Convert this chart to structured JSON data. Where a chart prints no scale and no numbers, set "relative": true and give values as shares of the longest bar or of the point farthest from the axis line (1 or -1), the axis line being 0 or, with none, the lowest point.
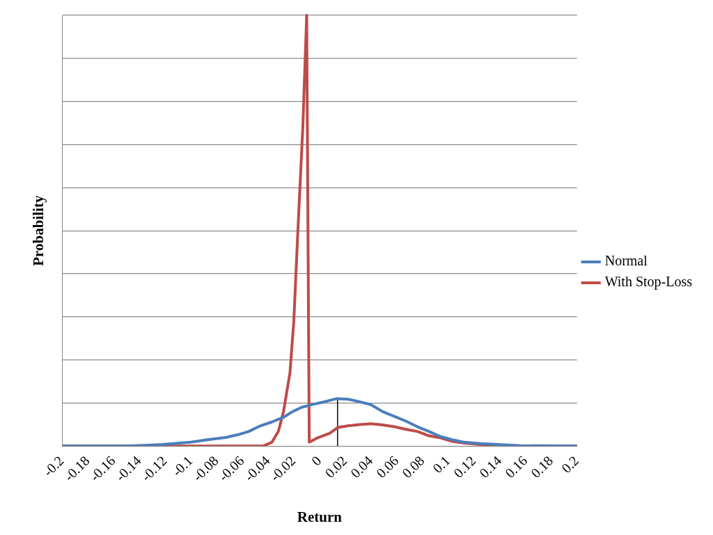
{
  "chart_data": {
    "type": "line",
    "xlabel": "Return",
    "ylabel": "Probability",
    "relative": true,
    "grid": "y",
    "legend": "right",
    "marker": "none",
    "line_style": "solid",
    "xlim": [
      -0.2,
      0.2
    ],
    "xticks": [
      -0.2,
      -0.18,
      -0.16,
      -0.14,
      -0.12,
      -0.1,
      -0.08,
      -0.06,
      -0.04,
      -0.02,
      0,
      0.02,
      0.04,
      0.06,
      0.08,
      0.1,
      0.12,
      0.14,
      0.16,
      0.18,
      0.2
    ],
    "series": [
      {
        "name": "Normal",
        "color": "#4a7ebb",
        "x": [
          -0.2,
          -0.15,
          -0.136,
          -0.122,
          -0.113,
          -0.1,
          -0.086,
          -0.073,
          -0.064,
          -0.055,
          -0.046,
          -0.037,
          -0.028,
          -0.021,
          -0.014,
          -0.005,
          0.004,
          0.013,
          0.022,
          0.031,
          0.04,
          0.049,
          0.058,
          0.067,
          0.076,
          0.085,
          0.094,
          0.103,
          0.112,
          0.125,
          0.138,
          0.156,
          0.2
        ],
        "values": [
          0,
          0,
          0.002,
          0.004,
          0.006,
          0.009,
          0.015,
          0.02,
          0.026,
          0.034,
          0.047,
          0.056,
          0.067,
          0.08,
          0.09,
          0.097,
          0.103,
          0.11,
          0.109,
          0.103,
          0.096,
          0.08,
          0.069,
          0.058,
          0.045,
          0.034,
          0.022,
          0.015,
          0.009,
          0.006,
          0.004,
          0.001,
          0
        ]
      },
      {
        "name": "With Stop-Loss",
        "color": "#be4b48",
        "x": [
          -0.2,
          -0.044,
          -0.037,
          -0.032,
          -0.028,
          -0.023,
          -0.02,
          -0.017,
          -0.013,
          -0.01,
          -0.008,
          -0.001,
          0.008,
          0.014,
          0.022,
          0.031,
          0.04,
          0.049,
          0.058,
          0.067,
          0.076,
          0.085,
          0.094,
          0.103,
          0.112,
          0.125,
          0.138,
          0.156,
          0.2
        ],
        "values": [
          0,
          0,
          0.009,
          0.034,
          0.08,
          0.17,
          0.29,
          0.49,
          0.74,
          1,
          0.009,
          0.02,
          0.03,
          0.043,
          0.047,
          0.05,
          0.052,
          0.049,
          0.045,
          0.039,
          0.034,
          0.024,
          0.019,
          0.011,
          0.007,
          0.004,
          0.002,
          0,
          0
        ]
      },
      {
        "color": "#000000",
        "x": [
          0.014,
          0.014
        ],
        "values": [
          0,
          0.11
        ]
      }
    ]
  }
}
